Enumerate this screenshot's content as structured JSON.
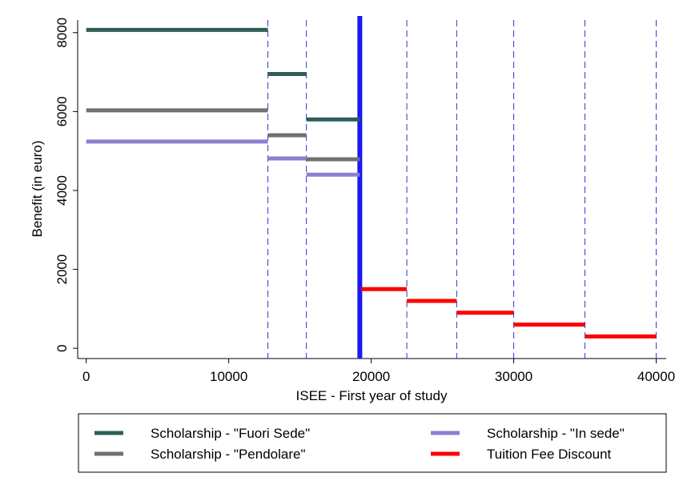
{
  "chart_data": {
    "type": "step-segments",
    "x_label": "ISEE - First year of study",
    "y_label": "Benefit (in euro)",
    "xlim": [
      -600,
      40700
    ],
    "ylim": [
      -260,
      8320
    ],
    "xticks": [
      0,
      10000,
      20000,
      30000,
      40000
    ],
    "yticks": [
      0,
      2000,
      4000,
      6000,
      8000
    ],
    "reference_lines": [
      12750,
      15450,
      22500,
      26000,
      30000,
      35000,
      40000
    ],
    "reference_color": "#3333dd",
    "threshold": 19200,
    "threshold_color": "#1a1aee",
    "series": [
      {
        "name": "Scholarship - \"Fuori Sede\"",
        "color": "#2e5e57",
        "x_start": [
          0,
          12750,
          15450
        ],
        "x_end": [
          12750,
          15450,
          19200
        ],
        "values": [
          8070,
          6950,
          5800
        ]
      },
      {
        "name": "Scholarship - \"In sede\"",
        "color": "#8a80d0",
        "x_start": [
          0,
          12750,
          15450
        ],
        "x_end": [
          12750,
          15450,
          19200
        ],
        "values": [
          5240,
          4810,
          4400
        ]
      },
      {
        "name": "Scholarship - \"Pendolare\"",
        "color": "#707070",
        "x_start": [
          0,
          12750,
          15450
        ],
        "x_end": [
          12750,
          15450,
          19200
        ],
        "values": [
          6030,
          5400,
          4790
        ]
      },
      {
        "name": "Tuition Fee Discount",
        "color": "#ff0000",
        "x_start": [
          19300,
          22500,
          26000,
          30000,
          35000
        ],
        "x_end": [
          22500,
          26000,
          30000,
          35000,
          40000
        ],
        "values": [
          1500,
          1200,
          900,
          600,
          300
        ]
      }
    ]
  }
}
